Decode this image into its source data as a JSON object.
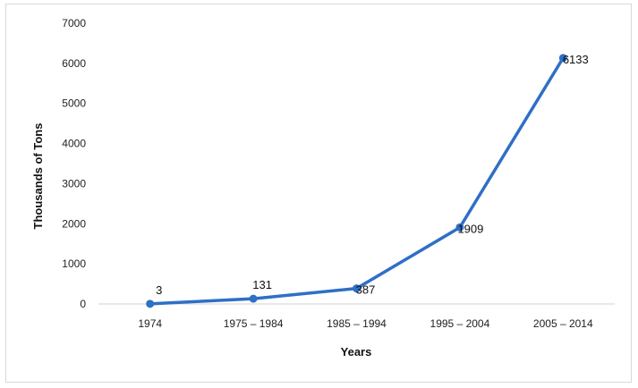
{
  "chart_data": {
    "type": "line",
    "title": "",
    "xlabel": "Years",
    "ylabel": "Thousands  of Tons",
    "categories": [
      "1974",
      "1975 – 1984",
      "1985 – 1994",
      "1995 – 2004",
      "2005 – 2014"
    ],
    "series": [
      {
        "values": [
          3,
          131,
          387,
          1909,
          6133
        ]
      }
    ],
    "data_labels": [
      "3",
      "131",
      "387",
      "1909",
      "6133"
    ],
    "ylim": [
      0,
      7000
    ],
    "yticks": [
      "0",
      "1000",
      "2000",
      "3000",
      "4000",
      "5000",
      "6000",
      "7000"
    ],
    "grid": false,
    "legend": "none",
    "line_color": "#2f6fc6"
  }
}
